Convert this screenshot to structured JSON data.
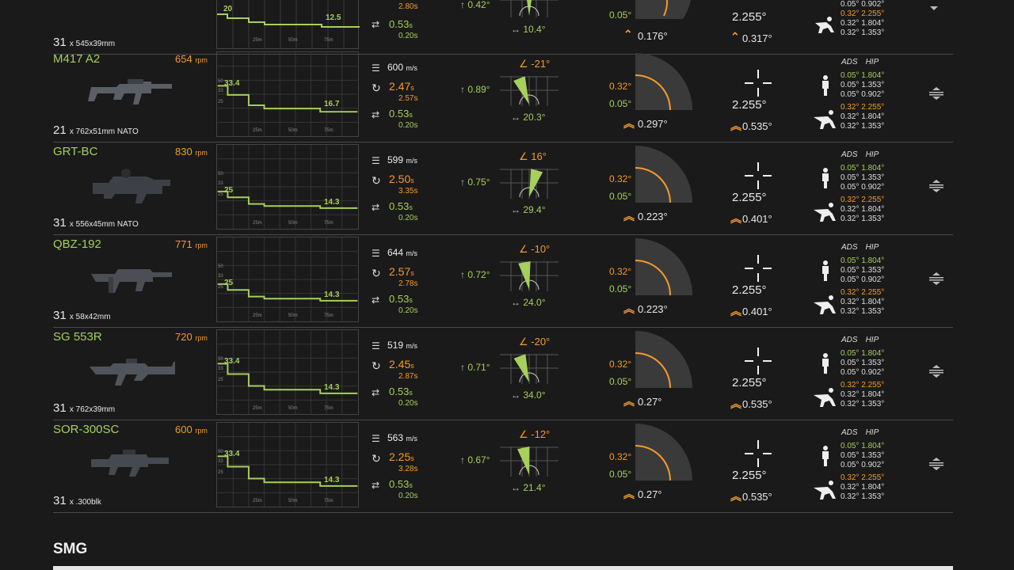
{
  "partial_row": {
    "mag_count": "31",
    "mag_caliber": "x 545x39mm",
    "chart_start": "20",
    "chart_end": "12.5",
    "reload_tactical": "2.80",
    "reload_unit": "s",
    "deploy": "0.53",
    "deploy_sub": "0.20",
    "sway_up": "0.42°",
    "sway_lr": "10.4°",
    "spread_green": "0.05°",
    "spread_bottom": "0.176°",
    "cross_top": "2.255°",
    "cross_bottom": "0.317°",
    "hip_lines": [
      "0.32° 2.255°",
      "0.32° 1.804°",
      "0.32° 1.353°"
    ],
    "ads_top": [
      "0.05° 0.902°"
    ]
  },
  "labels": {
    "ads": "ADS",
    "hip": "HIP",
    "rpm_unit": "rpm",
    "ms_unit": "m/s",
    "sec_unit": "s",
    "chart_x": [
      "25m",
      "50m",
      "75m"
    ],
    "chart_y": [
      "50",
      "33",
      "25"
    ]
  },
  "weapons": [
    {
      "name": "M417 A2",
      "rpm": "654",
      "mag_count": "21",
      "caliber": "x 762x51mm NATO",
      "dmg_start": "33.4",
      "dmg_end": "16.7",
      "velocity": "600",
      "reload": "2.47",
      "reload_empty": "2.57",
      "deploy": "0.53",
      "deploy_sub": "0.20",
      "angle": "∠ -21°",
      "up": "0.89°",
      "lr": "20.3°",
      "spread_orange": "0.32°",
      "spread_green": "0.05°",
      "spread_val": "0.297°",
      "cross_val": "2.255°",
      "cross_sub": "0.535°",
      "ads_lines": [
        "0.05° 1.804°",
        "0.05° 1.353°",
        "0.05° 0.902°"
      ],
      "hip_lines": [
        "0.32° 2.255°",
        "0.32° 1.804°",
        "0.32° 1.353°"
      ]
    },
    {
      "name": "GRT-BC",
      "rpm": "830",
      "mag_count": "31",
      "caliber": "x 556x45mm NATO",
      "dmg_start": "25",
      "dmg_end": "14.3",
      "velocity": "599",
      "reload": "2.50",
      "reload_empty": "3.35",
      "deploy": "0.53",
      "deploy_sub": "0.20",
      "angle": "∠ 16°",
      "up": "0.75°",
      "lr": "29.4°",
      "spread_orange": "0.32°",
      "spread_green": "0.05°",
      "spread_val": "0.223°",
      "cross_val": "2.255°",
      "cross_sub": "0.401°",
      "ads_lines": [
        "0.05° 1.804°",
        "0.05° 1.353°",
        "0.05° 0.902°"
      ],
      "hip_lines": [
        "0.32° 2.255°",
        "0.32° 1.804°",
        "0.32° 1.353°"
      ]
    },
    {
      "name": "QBZ-192",
      "rpm": "771",
      "mag_count": "31",
      "caliber": "x 58x42mm",
      "dmg_start": "25",
      "dmg_end": "14.3",
      "velocity": "644",
      "reload": "2.57",
      "reload_empty": "2.78",
      "deploy": "0.53",
      "deploy_sub": "0.20",
      "angle": "∠ -10°",
      "up": "0.72°",
      "lr": "24.0°",
      "spread_orange": "0.32°",
      "spread_green": "0.05°",
      "spread_val": "0.223°",
      "cross_val": "2.255°",
      "cross_sub": "0.401°",
      "ads_lines": [
        "0.05° 1.804°",
        "0.05° 1.353°",
        "0.05° 0.902°"
      ],
      "hip_lines": [
        "0.32° 2.255°",
        "0.32° 1.804°",
        "0.32° 1.353°"
      ]
    },
    {
      "name": "SG 553R",
      "rpm": "720",
      "mag_count": "31",
      "caliber": "x 762x39mm",
      "dmg_start": "33.4",
      "dmg_end": "14.3",
      "velocity": "519",
      "reload": "2.45",
      "reload_empty": "2.87",
      "deploy": "0.53",
      "deploy_sub": "0.20",
      "angle": "∠ -20°",
      "up": "0.71°",
      "lr": "34.0°",
      "spread_orange": "0.32°",
      "spread_green": "0.05°",
      "spread_val": "0.27°",
      "cross_val": "2.255°",
      "cross_sub": "0.535°",
      "ads_lines": [
        "0.05° 1.804°",
        "0.05° 1.353°",
        "0.05° 0.902°"
      ],
      "hip_lines": [
        "0.32° 2.255°",
        "0.32° 1.804°",
        "0.32° 1.353°"
      ]
    },
    {
      "name": "SOR-300SC",
      "rpm": "600",
      "mag_count": "31",
      "caliber": "x .300blk",
      "dmg_start": "33.4",
      "dmg_end": "14.3",
      "velocity": "563",
      "reload": "2.25",
      "reload_empty": "3.28",
      "deploy": "0.53",
      "deploy_sub": "0.20",
      "angle": "∠ -12°",
      "up": "0.67°",
      "lr": "21.4°",
      "spread_orange": "0.32°",
      "spread_green": "0.05°",
      "spread_val": "0.27°",
      "cross_val": "2.255°",
      "cross_sub": "0.535°",
      "ads_lines": [
        "0.05° 1.804°",
        "0.05° 1.353°",
        "0.05° 0.902°"
      ],
      "hip_lines": [
        "0.32° 2.255°",
        "0.32° 1.804°",
        "0.32° 1.353°"
      ]
    }
  ],
  "section_title": "SMG"
}
